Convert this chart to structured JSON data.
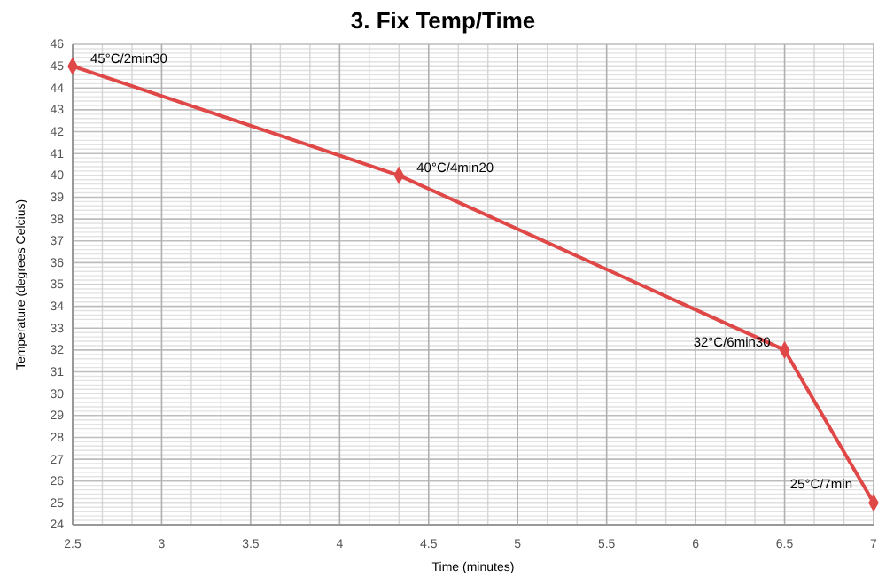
{
  "chart_data": {
    "type": "line",
    "title": "3. Fix Temp/Time",
    "xlabel": "Time (minutes)",
    "ylabel": "Temperature (degrees Celcius)",
    "x": [
      2.5,
      4.333,
      6.5,
      7
    ],
    "series": [
      {
        "color": "#e04848",
        "values": [
          45,
          40,
          32,
          25
        ]
      }
    ],
    "annotations": [
      {
        "text": "45°C/2min30",
        "x": 2.5,
        "y": 45
      },
      {
        "text": "40°C/4min20",
        "x": 4.333,
        "y": 40
      },
      {
        "text": "32°C/6min30",
        "x": 6.5,
        "y": 32
      },
      {
        "text": "25°C/7min",
        "x": 7,
        "y": 25
      }
    ],
    "xlim": [
      2.5,
      7
    ],
    "xticks": [
      2.5,
      3,
      3.5,
      4,
      4.5,
      5,
      5.5,
      6,
      6.5,
      7
    ],
    "ylim": [
      24,
      46
    ],
    "yticks": [
      24,
      25,
      26,
      27,
      28,
      29,
      30,
      31,
      32,
      33,
      34,
      35,
      36,
      37,
      38,
      39,
      40,
      41,
      42,
      43,
      44,
      45,
      46
    ],
    "grid": true,
    "marker": "diamond",
    "line_style": "solid"
  }
}
